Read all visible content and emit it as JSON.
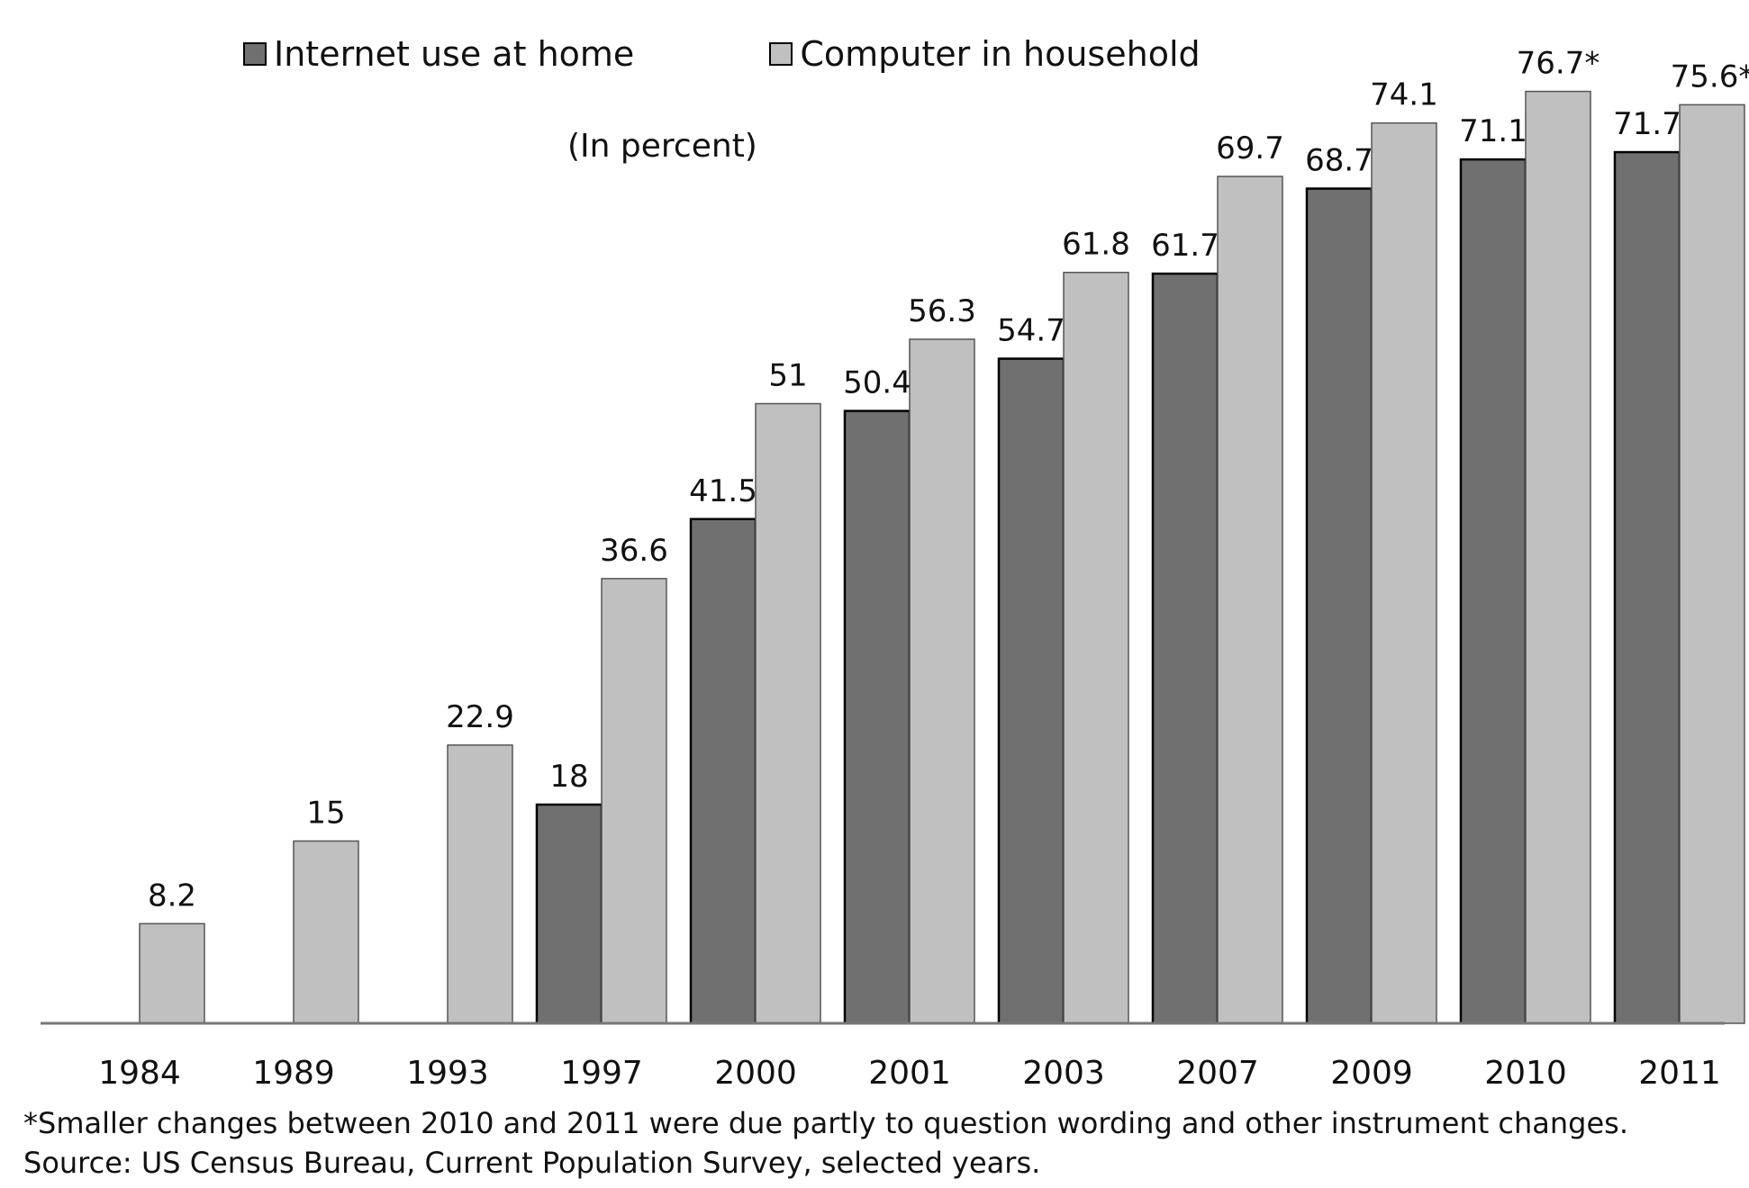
{
  "legend": [
    {
      "label": "Internet use at home",
      "color": "#707070"
    },
    {
      "label": "Computer in household",
      "color": "#c0c0c0"
    }
  ],
  "unit_note": "(In percent)",
  "footnotes": [
    "*Smaller changes between 2010 and 2011 were due partly to question wording and other instrument changes.",
    "Source: US Census Bureau, Current Population Survey, selected years."
  ],
  "chart_data": {
    "type": "bar",
    "categories": [
      "1984",
      "1989",
      "1993",
      "1997",
      "2000",
      "2001",
      "2003",
      "2007",
      "2009",
      "2010",
      "2011"
    ],
    "series": [
      {
        "name": "Internet use at home",
        "color": "#707070",
        "values": [
          null,
          null,
          null,
          18,
          41.5,
          50.4,
          54.7,
          61.7,
          68.7,
          71.1,
          71.7
        ],
        "labels": [
          "",
          "",
          "",
          "18",
          "41.5",
          "50.4",
          "54.7",
          "61.7",
          "68.7",
          "71.1",
          "71.7"
        ]
      },
      {
        "name": "Computer in household",
        "color": "#c0c0c0",
        "values": [
          8.2,
          15,
          22.9,
          36.6,
          51,
          56.3,
          61.8,
          69.7,
          74.1,
          76.7,
          75.6
        ],
        "labels": [
          "8.2",
          "15",
          "22.9",
          "36.6",
          "51",
          "56.3",
          "61.8",
          "69.7",
          "74.1",
          "76.7*",
          "75.6*"
        ]
      }
    ],
    "ylim": [
      0,
      77
    ],
    "grid": false,
    "legend_position": "top-left"
  }
}
